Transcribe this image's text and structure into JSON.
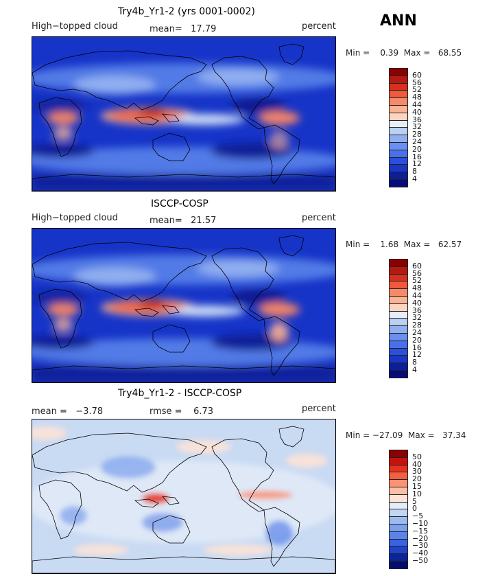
{
  "season": "ANN",
  "panels": [
    {
      "title": "Try4b_Yr1-2 (yrs 0001-0002)",
      "left_label": "High−topped cloud",
      "mid_label": "mean=   17.79",
      "right_label": "percent",
      "minmax": "Min =    0.39  Max =   68.55",
      "type": "field"
    },
    {
      "title": "ISCCP-COSP",
      "left_label": "High−topped cloud",
      "mid_label": "mean=   21.57",
      "right_label": "percent",
      "minmax": "Min =    1.68  Max =   62.57",
      "type": "field"
    },
    {
      "title": "Try4b_Yr1-2 - ISCCP-COSP",
      "left_label": "mean =   −3.78",
      "mid_label": "rmse =    6.73",
      "right_label": "percent",
      "minmax": "Min = −27.09  Max =   37.34",
      "type": "diff"
    }
  ],
  "chart_data": [
    {
      "type": "heatmap",
      "title": "Try4b_Yr1-2 (yrs 0001-0002)",
      "field": "High-topped cloud",
      "units": "percent",
      "mean": 17.79,
      "min": 0.39,
      "max": 68.55,
      "levels": [
        "60",
        "56",
        "52",
        "48",
        "44",
        "40",
        "36",
        "32",
        "28",
        "24",
        "20",
        "16",
        "12",
        "8",
        "4"
      ]
    },
    {
      "type": "heatmap",
      "title": "ISCCP-COSP",
      "field": "High-topped cloud",
      "units": "percent",
      "mean": 21.57,
      "min": 1.68,
      "max": 62.57,
      "levels": [
        "60",
        "56",
        "52",
        "48",
        "44",
        "40",
        "36",
        "32",
        "28",
        "24",
        "20",
        "16",
        "12",
        "8",
        "4"
      ]
    },
    {
      "type": "heatmap",
      "title": "Try4b_Yr1-2 - ISCCP-COSP",
      "units": "percent",
      "mean": -3.78,
      "rmse": 6.73,
      "min": -27.09,
      "max": 37.34,
      "levels": [
        "50",
        "40",
        "30",
        "20",
        "15",
        "10",
        "5",
        "0",
        "−5",
        "−10",
        "−15",
        "−20",
        "−30",
        "−40",
        "−50"
      ]
    }
  ],
  "colors": {
    "field_scale": [
      "#8b0000",
      "#b51a12",
      "#d7301f",
      "#ef5a3c",
      "#f68a68",
      "#fbb393",
      "#fdd5bf",
      "#e8eef8",
      "#bcd0f3",
      "#8faff0",
      "#6a8ff0",
      "#4870ea",
      "#2a4fde",
      "#1a36c4",
      "#0c1f96",
      "#060c7a"
    ],
    "diff_scale": [
      "#8b0000",
      "#c4130e",
      "#e8311e",
      "#f4603f",
      "#fa9274",
      "#fdbea6",
      "#fde3d6",
      "#e3ecf8",
      "#c2d5f2",
      "#9dbbf0",
      "#7aa0ee",
      "#5a84ea",
      "#3a63e2",
      "#1f43cc",
      "#0b2498",
      "#050e6e"
    ]
  }
}
